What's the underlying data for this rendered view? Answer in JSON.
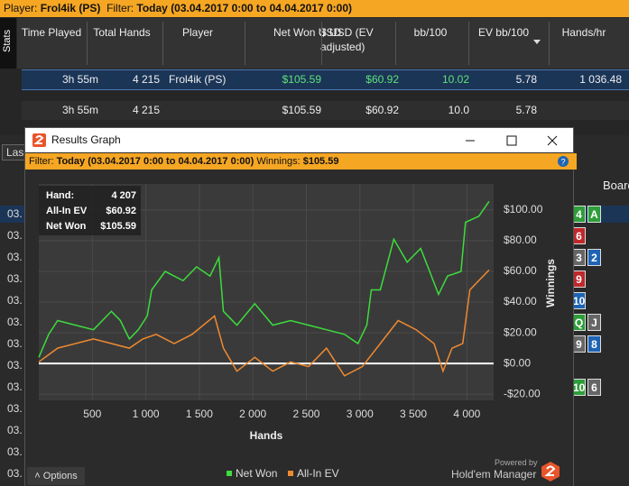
{
  "header": {
    "player_label": "Player:",
    "player": "Frol4ik (PS)",
    "filter_label": "Filter:",
    "filter": "Today (03.04.2017 0:00 to 04.04.2017 0:00)"
  },
  "stats_tab": "Stats",
  "table": {
    "columns": [
      "Time Played",
      "Total Hands",
      "Player",
      "Net Won USD",
      "$ USD (EV adjusted)",
      "bb/100",
      "EV bb/100",
      "Hands/hr"
    ],
    "rows": [
      [
        "3h 55m",
        "4 215",
        "Frol4ik (PS)",
        "$105.59",
        "$60.92",
        "10.02",
        "5.78",
        "1 036.48"
      ]
    ],
    "totals": {
      "time": "3h 55m",
      "hands": "4 215",
      "net": "$105.59",
      "ev": "$60.92",
      "bb": "10.0",
      "evbb": "5.78"
    }
  },
  "lower": {
    "tab": "Las",
    "board": "Board",
    "dates": [
      "03.",
      "03.",
      "03.",
      "03.",
      "03.",
      "03.",
      "03.",
      "03.",
      "03.",
      "03.",
      "03.",
      "03.",
      "03."
    ],
    "cards": [
      [
        {
          "t": "4",
          "c": "#2e9e3a"
        },
        {
          "t": "A",
          "c": "#2e9e3a"
        }
      ],
      [
        {
          "t": "6",
          "c": "#c0282b"
        }
      ],
      [
        {
          "t": "3",
          "c": "#666"
        },
        {
          "t": "2",
          "c": "#1f64b4"
        }
      ],
      [
        {
          "t": "9",
          "c": "#c0282b"
        }
      ],
      [
        {
          "t": "10",
          "c": "#1f64b4"
        }
      ],
      [
        {
          "t": "Q",
          "c": "#2e9e3a"
        },
        {
          "t": "J",
          "c": "#666"
        }
      ],
      [
        {
          "t": "9",
          "c": "#666"
        },
        {
          "t": "8",
          "c": "#1f64b4"
        }
      ],
      [
        {
          "t": "10",
          "c": "#2e9e3a"
        },
        {
          "t": "6",
          "c": "#666"
        }
      ]
    ]
  },
  "window": {
    "title": "Results Graph",
    "filter_label": "Filter:",
    "filter": "Today (03.04.2017 0:00 to 04.04.2017 0:00)",
    "winnings_label": "Winnings:",
    "winnings": "$105.59",
    "options": "Options",
    "powered": "Powered by",
    "brand": "Hold'em Manager"
  },
  "chart_data": {
    "type": "line",
    "x_label": "Hands",
    "y_label": "Winnings",
    "tooltip": {
      "hand_label": "Hand:",
      "hand": "4 207",
      "ev_label": "All-In EV",
      "ev": "$60.92",
      "net_label": "Net Won",
      "net": "$105.59"
    },
    "xlim": [
      0,
      4250
    ],
    "ylim": [
      -24,
      117
    ],
    "grid": true,
    "xticks": [
      500,
      {
        "value": 1000,
        "label": "1 000"
      },
      {
        "value": 1500,
        "label": "1 500"
      },
      {
        "value": 2000,
        "label": "2 000"
      },
      {
        "value": 2500,
        "label": "2 500"
      },
      {
        "value": 3000,
        "label": "3 000"
      },
      {
        "value": 3500,
        "label": "3 500"
      },
      {
        "value": 4000,
        "label": "4 000"
      }
    ],
    "yticks": [
      {
        "value": -20,
        "label": "-$20.00"
      },
      {
        "value": 0,
        "label": "$0.00"
      },
      {
        "value": 20,
        "label": "$20.00"
      },
      {
        "value": 40,
        "label": "$40.00"
      },
      {
        "value": 60,
        "label": "$60.00"
      },
      {
        "value": 80,
        "label": "$80.00"
      },
      {
        "value": 100,
        "label": "$100.00"
      }
    ],
    "series": [
      {
        "name": "Net Won",
        "color": "#3ddc3d",
        "x": [
          0,
          92,
          176,
          343,
          511,
          678,
          762,
          846,
          930,
          1013,
          1055,
          1181,
          1348,
          1474,
          1600,
          1683,
          1725,
          1851,
          2018,
          2186,
          2353,
          2521,
          2688,
          2856,
          2982,
          3065,
          3107,
          3191,
          3317,
          3442,
          3568,
          3652,
          3735,
          3819,
          3945,
          3987,
          4112,
          4207
        ],
        "values": [
          4,
          19,
          28,
          25,
          22,
          34,
          28,
          16,
          22,
          31,
          48,
          60,
          54,
          63,
          57,
          69,
          34,
          25,
          39,
          25,
          28,
          25,
          22,
          19,
          13,
          25,
          48,
          48,
          81,
          66,
          75,
          60,
          45,
          57,
          60,
          92,
          96,
          105.59
        ]
      },
      {
        "name": "All-In EV",
        "color": "#f08a30",
        "x": [
          0,
          176,
          511,
          846,
          972,
          1097,
          1265,
          1432,
          1642,
          1725,
          1851,
          2018,
          2186,
          2353,
          2521,
          2688,
          2856,
          3023,
          3191,
          3358,
          3526,
          3693,
          3777,
          3861,
          3961,
          4028,
          4153,
          4207
        ],
        "values": [
          1,
          10,
          16,
          10,
          16,
          19,
          13,
          19,
          31,
          10,
          -5,
          4,
          -5,
          1,
          -2,
          10,
          -8,
          -2,
          13,
          28,
          22,
          13,
          -5,
          10,
          13,
          48,
          57,
          60.92
        ]
      }
    ]
  }
}
